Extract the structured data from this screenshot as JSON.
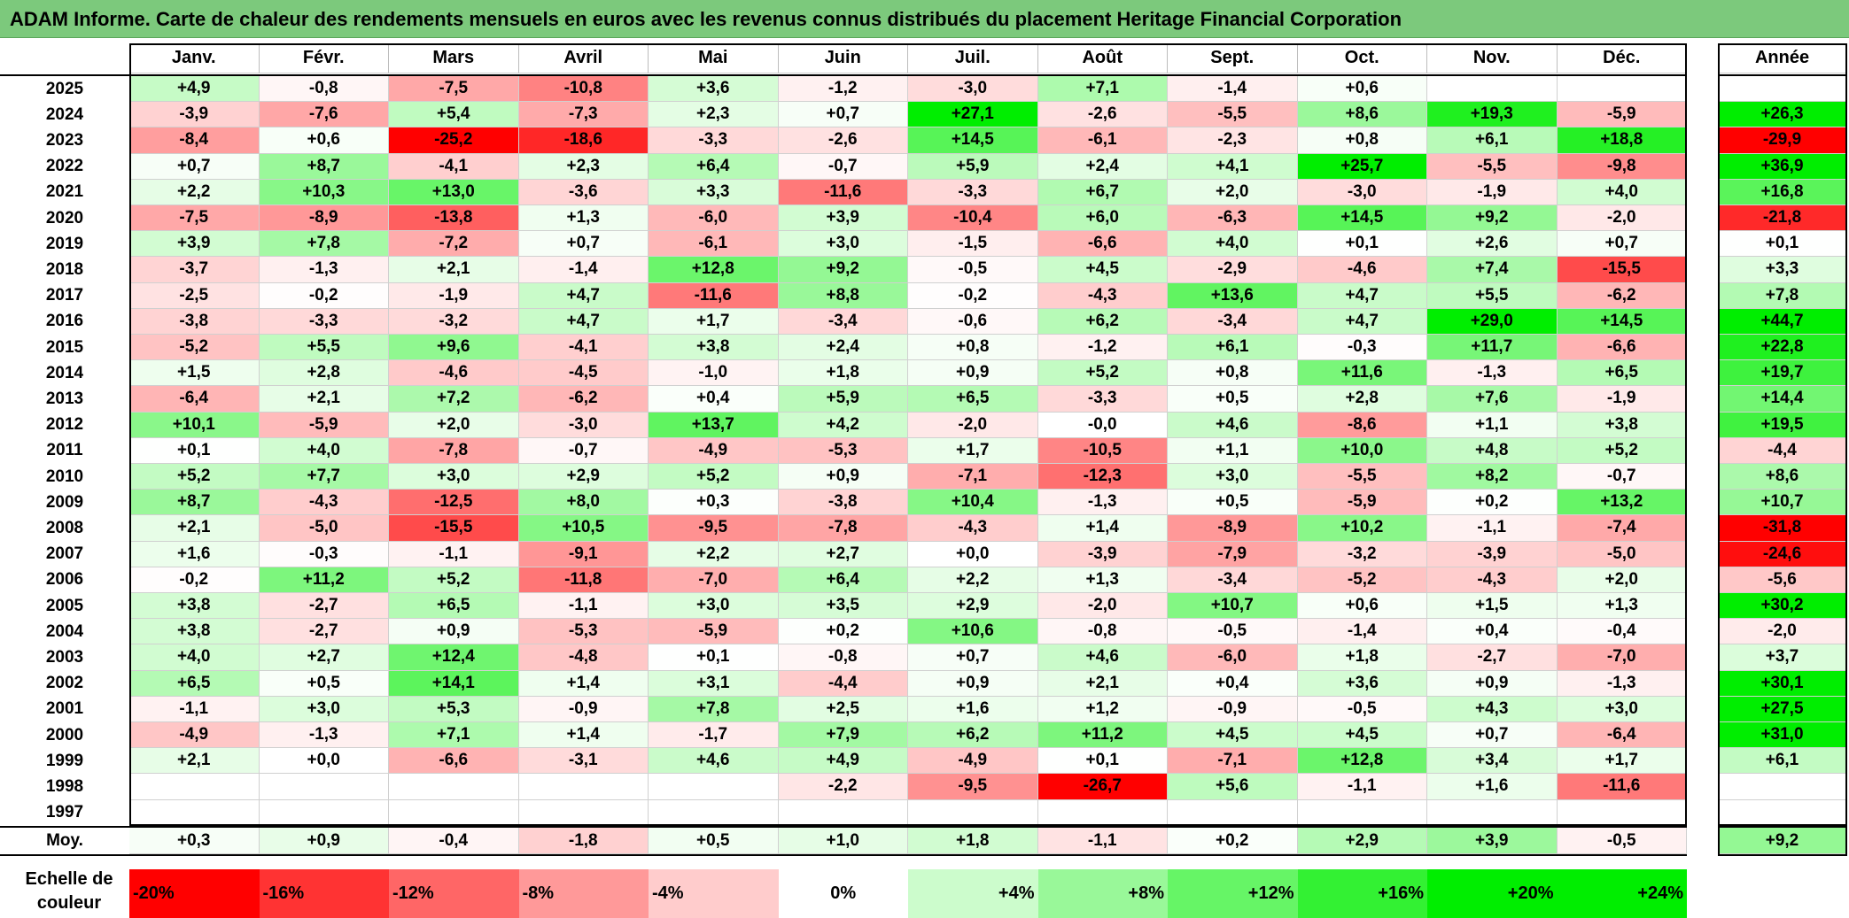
{
  "title": "ADAM Informe. Carte de chaleur des rendements mensuels en euros avec les revenus connus distribués du placement Heritage Financial Corporation",
  "chart_data": {
    "type": "heatmap",
    "months": [
      "Janv.",
      "Févr.",
      "Mars",
      "Avril",
      "Mai",
      "Juin",
      "Juil.",
      "Août",
      "Sept.",
      "Oct.",
      "Nov.",
      "Déc."
    ],
    "year_header": "Année",
    "average_label": "Moy.",
    "rows": [
      {
        "year": "2025",
        "months": [
          "+4,9",
          "-0,8",
          "-7,5",
          "-10,8",
          "+3,6",
          "-1,2",
          "-3,0",
          "+7,1",
          "-1,4",
          "+0,6",
          "",
          ""
        ],
        "annual": ""
      },
      {
        "year": "2024",
        "months": [
          "-3,9",
          "-7,6",
          "+5,4",
          "-7,3",
          "+2,3",
          "+0,7",
          "+27,1",
          "-2,6",
          "-5,5",
          "+8,6",
          "+19,3",
          "-5,9"
        ],
        "annual": "+26,3"
      },
      {
        "year": "2023",
        "months": [
          "-8,4",
          "+0,6",
          "-25,2",
          "-18,6",
          "-3,3",
          "-2,6",
          "+14,5",
          "-6,1",
          "-2,3",
          "+0,8",
          "+6,1",
          "+18,8"
        ],
        "annual": "-29,9"
      },
      {
        "year": "2022",
        "months": [
          "+0,7",
          "+8,7",
          "-4,1",
          "+2,3",
          "+6,4",
          "-0,7",
          "+5,9",
          "+2,4",
          "+4,1",
          "+25,7",
          "-5,5",
          "-9,8"
        ],
        "annual": "+36,9"
      },
      {
        "year": "2021",
        "months": [
          "+2,2",
          "+10,3",
          "+13,0",
          "-3,6",
          "+3,3",
          "-11,6",
          "-3,3",
          "+6,7",
          "+2,0",
          "-3,0",
          "-1,9",
          "+4,0"
        ],
        "annual": "+16,8"
      },
      {
        "year": "2020",
        "months": [
          "-7,5",
          "-8,9",
          "-13,8",
          "+1,3",
          "-6,0",
          "+3,9",
          "-10,4",
          "+6,0",
          "-6,3",
          "+14,5",
          "+9,2",
          "-2,0"
        ],
        "annual": "-21,8"
      },
      {
        "year": "2019",
        "months": [
          "+3,9",
          "+7,8",
          "-7,2",
          "+0,7",
          "-6,1",
          "+3,0",
          "-1,5",
          "-6,6",
          "+4,0",
          "+0,1",
          "+2,6",
          "+0,7"
        ],
        "annual": "+0,1"
      },
      {
        "year": "2018",
        "months": [
          "-3,7",
          "-1,3",
          "+2,1",
          "-1,4",
          "+12,8",
          "+9,2",
          "-0,5",
          "+4,5",
          "-2,9",
          "-4,6",
          "+7,4",
          "-15,5"
        ],
        "annual": "+3,3"
      },
      {
        "year": "2017",
        "months": [
          "-2,5",
          "-0,2",
          "-1,9",
          "+4,7",
          "-11,6",
          "+8,8",
          "-0,2",
          "-4,3",
          "+13,6",
          "+4,7",
          "+5,5",
          "-6,2"
        ],
        "annual": "+7,8"
      },
      {
        "year": "2016",
        "months": [
          "-3,8",
          "-3,3",
          "-3,2",
          "+4,7",
          "+1,7",
          "-3,4",
          "-0,6",
          "+6,2",
          "-3,4",
          "+4,7",
          "+29,0",
          "+14,5"
        ],
        "annual": "+44,7"
      },
      {
        "year": "2015",
        "months": [
          "-5,2",
          "+5,5",
          "+9,6",
          "-4,1",
          "+3,8",
          "+2,4",
          "+0,8",
          "-1,2",
          "+6,1",
          "-0,3",
          "+11,7",
          "-6,6"
        ],
        "annual": "+22,8"
      },
      {
        "year": "2014",
        "months": [
          "+1,5",
          "+2,8",
          "-4,6",
          "-4,5",
          "-1,0",
          "+1,8",
          "+0,9",
          "+5,2",
          "+0,8",
          "+11,6",
          "-1,3",
          "+6,5"
        ],
        "annual": "+19,7"
      },
      {
        "year": "2013",
        "months": [
          "-6,4",
          "+2,1",
          "+7,2",
          "-6,2",
          "+0,4",
          "+5,9",
          "+6,5",
          "-3,3",
          "+0,5",
          "+2,8",
          "+7,6",
          "-1,9"
        ],
        "annual": "+14,4"
      },
      {
        "year": "2012",
        "months": [
          "+10,1",
          "-5,9",
          "+2,0",
          "-3,0",
          "+13,7",
          "+4,2",
          "-2,0",
          "-0,0",
          "+4,6",
          "-8,6",
          "+1,1",
          "+3,8"
        ],
        "annual": "+19,5"
      },
      {
        "year": "2011",
        "months": [
          "+0,1",
          "+4,0",
          "-7,8",
          "-0,7",
          "-4,9",
          "-5,3",
          "+1,7",
          "-10,5",
          "+1,1",
          "+10,0",
          "+4,8",
          "+5,2"
        ],
        "annual": "-4,4"
      },
      {
        "year": "2010",
        "months": [
          "+5,2",
          "+7,7",
          "+3,0",
          "+2,9",
          "+5,2",
          "+0,9",
          "-7,1",
          "-12,3",
          "+3,0",
          "-5,5",
          "+8,2",
          "-0,7"
        ],
        "annual": "+8,6"
      },
      {
        "year": "2009",
        "months": [
          "+8,7",
          "-4,3",
          "-12,5",
          "+8,0",
          "+0,3",
          "-3,8",
          "+10,4",
          "-1,3",
          "+0,5",
          "-5,9",
          "+0,2",
          "+13,2"
        ],
        "annual": "+10,7"
      },
      {
        "year": "2008",
        "months": [
          "+2,1",
          "-5,0",
          "-15,5",
          "+10,5",
          "-9,5",
          "-7,8",
          "-4,3",
          "+1,4",
          "-8,9",
          "+10,2",
          "-1,1",
          "-7,4"
        ],
        "annual": "-31,8"
      },
      {
        "year": "2007",
        "months": [
          "+1,6",
          "-0,3",
          "-1,1",
          "-9,1",
          "+2,2",
          "+2,7",
          "+0,0",
          "-3,9",
          "-7,9",
          "-3,2",
          "-3,9",
          "-5,0"
        ],
        "annual": "-24,6"
      },
      {
        "year": "2006",
        "months": [
          "-0,2",
          "+11,2",
          "+5,2",
          "-11,8",
          "-7,0",
          "+6,4",
          "+2,2",
          "+1,3",
          "-3,4",
          "-5,2",
          "-4,3",
          "+2,0"
        ],
        "annual": "-5,6"
      },
      {
        "year": "2005",
        "months": [
          "+3,8",
          "-2,7",
          "+6,5",
          "-1,1",
          "+3,0",
          "+3,5",
          "+2,9",
          "-2,0",
          "+10,7",
          "+0,6",
          "+1,5",
          "+1,3"
        ],
        "annual": "+30,2"
      },
      {
        "year": "2004",
        "months": [
          "+3,8",
          "-2,7",
          "+0,9",
          "-5,3",
          "-5,9",
          "+0,2",
          "+10,6",
          "-0,8",
          "-0,5",
          "-1,4",
          "+0,4",
          "-0,4"
        ],
        "annual": "-2,0"
      },
      {
        "year": "2003",
        "months": [
          "+4,0",
          "+2,7",
          "+12,4",
          "-4,8",
          "+0,1",
          "-0,8",
          "+0,7",
          "+4,6",
          "-6,0",
          "+1,8",
          "-2,7",
          "-7,0"
        ],
        "annual": "+3,7"
      },
      {
        "year": "2002",
        "months": [
          "+6,5",
          "+0,5",
          "+14,1",
          "+1,4",
          "+3,1",
          "-4,4",
          "+0,9",
          "+2,1",
          "+0,4",
          "+3,6",
          "+0,9",
          "-1,3"
        ],
        "annual": "+30,1"
      },
      {
        "year": "2001",
        "months": [
          "-1,1",
          "+3,0",
          "+5,3",
          "-0,9",
          "+7,8",
          "+2,5",
          "+1,6",
          "+1,2",
          "-0,9",
          "-0,5",
          "+4,3",
          "+3,0"
        ],
        "annual": "+27,5"
      },
      {
        "year": "2000",
        "months": [
          "-4,9",
          "-1,3",
          "+7,1",
          "+1,4",
          "-1,7",
          "+7,9",
          "+6,2",
          "+11,2",
          "+4,5",
          "+4,5",
          "+0,7",
          "-6,4"
        ],
        "annual": "+31,0"
      },
      {
        "year": "1999",
        "months": [
          "+2,1",
          "+0,0",
          "-6,6",
          "-3,1",
          "+4,6",
          "+4,9",
          "-4,9",
          "+0,1",
          "-7,1",
          "+12,8",
          "+3,4",
          "+1,7"
        ],
        "annual": "+6,1"
      },
      {
        "year": "1998",
        "months": [
          "",
          "",
          "",
          "",
          "",
          "-2,2",
          "-9,5",
          "-26,7",
          "+5,6",
          "-1,1",
          "+1,6",
          "-11,6"
        ],
        "annual": ""
      },
      {
        "year": "1997",
        "months": [
          "",
          "",
          "",
          "",
          "",
          "",
          "",
          "",
          "",
          "",
          "",
          ""
        ],
        "annual": ""
      }
    ],
    "average": {
      "months": [
        "+0,3",
        "+0,9",
        "-0,4",
        "-1,8",
        "+0,5",
        "+1,0",
        "+1,8",
        "-1,1",
        "+0,2",
        "+2,9",
        "+3,9",
        "-0,5"
      ],
      "annual": "+9,2"
    },
    "legend": {
      "title": "Echelle de couleur",
      "items": [
        "-20%",
        "-16%",
        "-12%",
        "-8%",
        "-4%",
        "0%",
        "+4%",
        "+8%",
        "+12%",
        "+16%",
        "+20%",
        "+24%"
      ]
    },
    "colors": {
      "negative_max": "#ff0000",
      "neutral": "#ffffff",
      "positive_max": "#00ee00",
      "title_bar": "#7cc97c"
    }
  }
}
